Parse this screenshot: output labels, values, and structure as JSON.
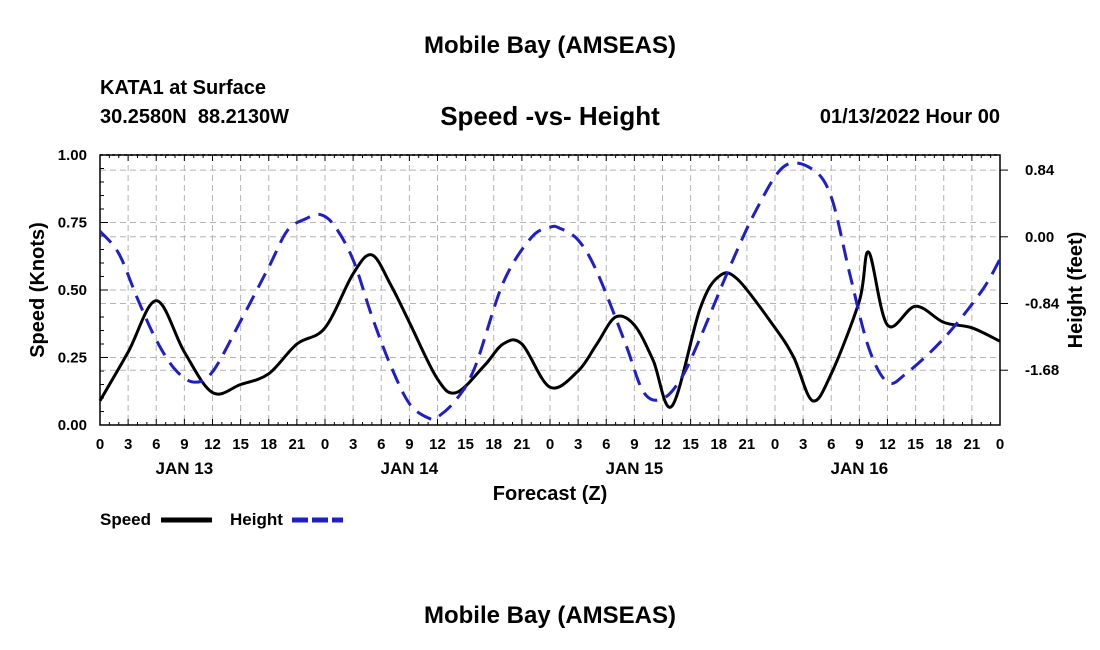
{
  "header": {
    "title": "Mobile Bay (AMSEAS)",
    "station": "KATA1 at Surface",
    "coords": "30.2580N  88.2130W",
    "subtitle": "Speed -vs- Height",
    "datetime": "01/13/2022 Hour 00"
  },
  "footer": {
    "title": "Mobile Bay (AMSEAS)"
  },
  "chart_data": {
    "type": "line",
    "title": "Speed -vs- Height",
    "xlabel": "Forecast (Z)",
    "ylabel": "Speed (Knots)",
    "y2label": "Height (feet)",
    "xlim": [
      0,
      96
    ],
    "ylim": [
      0,
      1
    ],
    "y2lim": [
      -2.37,
      1.03
    ],
    "grid": true,
    "legend_position": "bottom-left",
    "x_tick_labels": [
      "0",
      "3",
      "6",
      "9",
      "12",
      "15",
      "18",
      "21",
      "0",
      "3",
      "6",
      "9",
      "12",
      "15",
      "18",
      "21",
      "0",
      "3",
      "6",
      "9",
      "12",
      "15",
      "18",
      "21",
      "0",
      "3",
      "6",
      "9",
      "12",
      "15",
      "18",
      "21",
      "0"
    ],
    "date_labels": [
      {
        "x": 9,
        "label": "JAN 13"
      },
      {
        "x": 33,
        "label": "JAN 14"
      },
      {
        "x": 57,
        "label": "JAN 15"
      },
      {
        "x": 81,
        "label": "JAN 16"
      }
    ],
    "y_ticks": [
      {
        "value": 0,
        "label": "0.00"
      },
      {
        "value": 0.25,
        "label": "0.25"
      },
      {
        "value": 0.5,
        "label": "0.50"
      },
      {
        "value": 0.75,
        "label": "0.75"
      },
      {
        "value": 1.0,
        "label": "1.00"
      }
    ],
    "y2_ticks": [
      {
        "value": 0.84,
        "label": "0.84"
      },
      {
        "value": 0.0,
        "label": "0.00"
      },
      {
        "value": -0.84,
        "label": "-0.84"
      },
      {
        "value": -1.68,
        "label": "-1.68"
      }
    ],
    "series": [
      {
        "name": "Speed",
        "axis": "left",
        "color": "#000000",
        "dash": "solid",
        "x": [
          0,
          3,
          6,
          9,
          12,
          15,
          18,
          21,
          24,
          27,
          29,
          31,
          33,
          36,
          38,
          41,
          43,
          45,
          48,
          51,
          53,
          55,
          57,
          59,
          61,
          64,
          66,
          68,
          72,
          74,
          76,
          78,
          81,
          82,
          84,
          87,
          90,
          93,
          96
        ],
        "y": [
          0.09,
          0.27,
          0.46,
          0.27,
          0.12,
          0.15,
          0.19,
          0.3,
          0.36,
          0.56,
          0.63,
          0.52,
          0.38,
          0.17,
          0.12,
          0.22,
          0.3,
          0.3,
          0.14,
          0.2,
          0.3,
          0.4,
          0.37,
          0.24,
          0.07,
          0.43,
          0.55,
          0.54,
          0.36,
          0.25,
          0.09,
          0.19,
          0.46,
          0.64,
          0.37,
          0.44,
          0.38,
          0.36,
          0.31
        ]
      },
      {
        "name": "Height",
        "axis": "right",
        "color": "#1f1fc8",
        "dash": "dashed",
        "x": [
          0,
          2,
          4,
          6,
          8,
          10,
          12,
          15,
          18,
          20,
          22,
          23.5,
          25,
          27,
          29,
          31,
          33,
          35,
          36,
          38,
          40,
          43,
          46,
          48,
          49,
          51,
          53,
          56,
          58,
          60,
          62,
          64,
          67,
          70,
          73,
          76,
          78,
          80,
          82,
          84,
          86,
          90,
          94,
          96
        ],
        "y": [
          0.07,
          -0.21,
          -0.78,
          -1.3,
          -1.67,
          -1.83,
          -1.7,
          -1.06,
          -0.38,
          0.08,
          0.23,
          0.28,
          0.14,
          -0.29,
          -1.0,
          -1.62,
          -2.1,
          -2.28,
          -2.27,
          -2.05,
          -1.64,
          -0.58,
          -0.01,
          0.12,
          0.11,
          -0.04,
          -0.44,
          -1.33,
          -1.96,
          -2.04,
          -1.78,
          -1.28,
          -0.43,
          0.34,
          0.89,
          0.85,
          0.5,
          -0.48,
          -1.4,
          -1.83,
          -1.72,
          -1.28,
          -0.69,
          -0.28
        ]
      }
    ]
  }
}
